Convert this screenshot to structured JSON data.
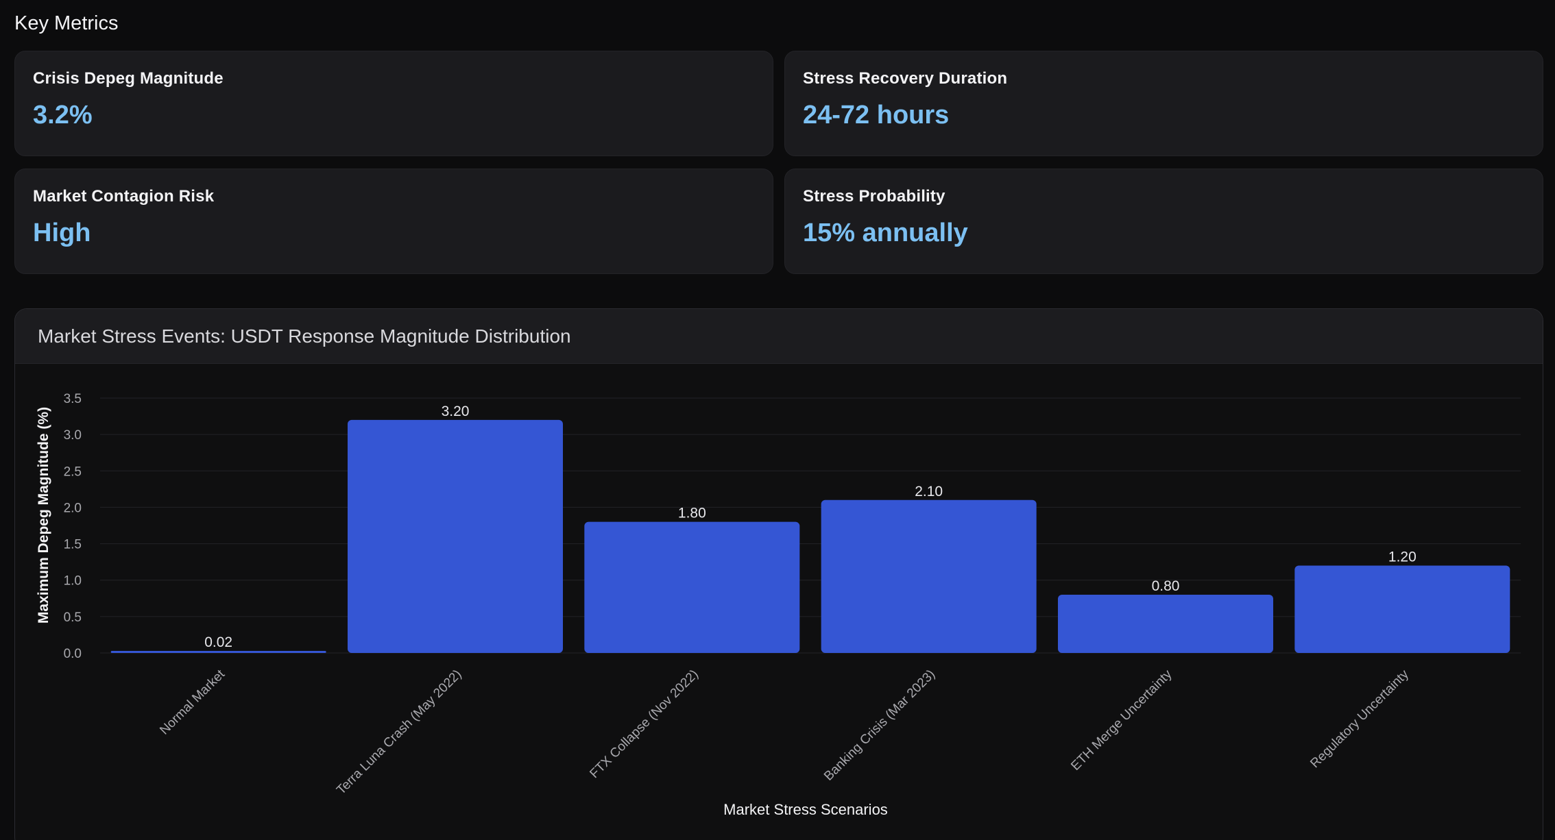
{
  "section_title": "Key Metrics",
  "metrics": [
    {
      "label": "Crisis Depeg Magnitude",
      "value": "3.2%"
    },
    {
      "label": "Stress Recovery Duration",
      "value": "24-72 hours"
    },
    {
      "label": "Market Contagion Risk",
      "value": "High"
    },
    {
      "label": "Stress Probability",
      "value": "15% annually"
    }
  ],
  "chart": {
    "title": "Market Stress Events: USDT Response Magnitude Distribution"
  },
  "chart_data": {
    "type": "bar",
    "title": "Market Stress Events: USDT Response Magnitude Distribution",
    "xlabel": "Market Stress Scenarios",
    "ylabel": "Maximum Depeg Magnitude (%)",
    "categories": [
      "Normal Market",
      "Terra Luna Crash (May 2022)",
      "FTX Collapse (Nov 2022)",
      "Banking Crisis (Mar 2023)",
      "ETH Merge Uncertainty",
      "Regulatory Uncertainty"
    ],
    "values": [
      0.02,
      3.2,
      1.8,
      2.1,
      0.8,
      1.2
    ],
    "data_labels": [
      "0.02",
      "3.20",
      "1.80",
      "2.10",
      "0.80",
      "1.20"
    ],
    "ylim": [
      0,
      3.5
    ],
    "yticks": [
      "0.0",
      "0.5",
      "1.0",
      "1.5",
      "2.0",
      "2.5",
      "3.0",
      "3.5"
    ],
    "grid": true,
    "bar_color": "#3556d4"
  }
}
